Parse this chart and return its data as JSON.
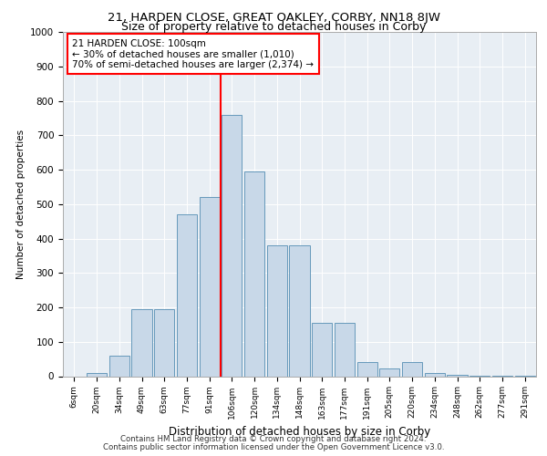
{
  "title1": "21, HARDEN CLOSE, GREAT OAKLEY, CORBY, NN18 8JW",
  "title2": "Size of property relative to detached houses in Corby",
  "xlabel": "Distribution of detached houses by size in Corby",
  "ylabel": "Number of detached properties",
  "categories": [
    "6sqm",
    "20sqm",
    "34sqm",
    "49sqm",
    "63sqm",
    "77sqm",
    "91sqm",
    "106sqm",
    "120sqm",
    "134sqm",
    "148sqm",
    "163sqm",
    "177sqm",
    "191sqm",
    "205sqm",
    "220sqm",
    "234sqm",
    "248sqm",
    "262sqm",
    "277sqm",
    "291sqm"
  ],
  "values": [
    0,
    10,
    60,
    195,
    195,
    470,
    520,
    760,
    595,
    380,
    380,
    155,
    155,
    40,
    22,
    40,
    10,
    5,
    2,
    2,
    2
  ],
  "bar_color": "#c8d8e8",
  "bar_edge_color": "#6699bb",
  "vline_x": 7,
  "vline_color": "red",
  "annotation_text": "21 HARDEN CLOSE: 100sqm\n← 30% of detached houses are smaller (1,010)\n70% of semi-detached houses are larger (2,374) →",
  "annotation_box_color": "white",
  "annotation_box_edge": "red",
  "ylim": [
    0,
    1000
  ],
  "yticks": [
    0,
    100,
    200,
    300,
    400,
    500,
    600,
    700,
    800,
    900,
    1000
  ],
  "background_color": "#e8eef4",
  "footer1": "Contains HM Land Registry data © Crown copyright and database right 2024.",
  "footer2": "Contains public sector information licensed under the Open Government Licence v3.0."
}
